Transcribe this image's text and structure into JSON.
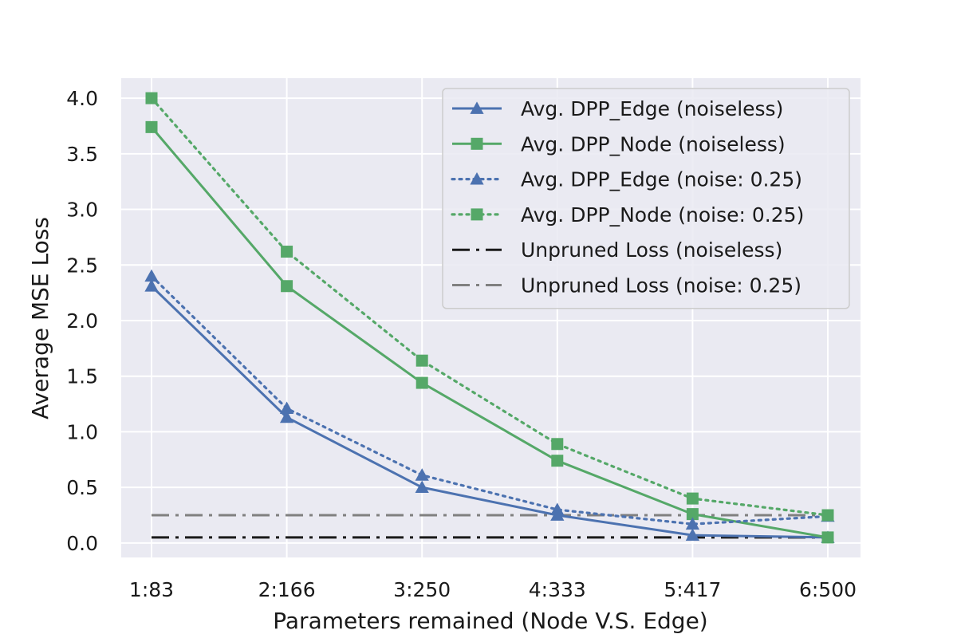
{
  "chart_data": {
    "type": "line",
    "title": "",
    "xlabel": "Parameters remained (Node V.S. Edge)",
    "ylabel": "Average MSE Loss",
    "categories": [
      "1:83",
      "2:166",
      "3:250",
      "4:333",
      "5:417",
      "6:500"
    ],
    "ylim": [
      -0.13,
      4.18
    ],
    "yticks": [
      0.0,
      0.5,
      1.0,
      1.5,
      2.0,
      2.5,
      3.0,
      3.5,
      4.0
    ],
    "ytick_labels": [
      "0.0",
      "0.5",
      "1.0",
      "1.5",
      "2.0",
      "2.5",
      "3.0",
      "3.5",
      "4.0"
    ],
    "grid": true,
    "legend_position": "top-right",
    "series": [
      {
        "name": "Avg. DPP_Edge (noiseless)",
        "values": [
          2.31,
          1.13,
          0.5,
          0.25,
          0.07,
          0.05
        ],
        "color": "#4c72b0",
        "linestyle": "solid",
        "marker": "triangle"
      },
      {
        "name": "Avg. DPP_Node (noiseless)",
        "values": [
          3.74,
          2.31,
          1.44,
          0.74,
          0.26,
          0.05
        ],
        "color": "#55a868",
        "linestyle": "solid",
        "marker": "square"
      },
      {
        "name": "Avg. DPP_Edge (noise: 0.25)",
        "values": [
          2.4,
          1.21,
          0.61,
          0.3,
          0.17,
          0.24
        ],
        "color": "#4c72b0",
        "linestyle": "dotted",
        "marker": "triangle"
      },
      {
        "name": "Avg. DPP_Node (noise: 0.25)",
        "values": [
          4.0,
          2.62,
          1.64,
          0.89,
          0.4,
          0.25
        ],
        "color": "#55a868",
        "linestyle": "dotted",
        "marker": "square"
      },
      {
        "name": "Unpruned Loss (noiseless)",
        "values": [
          0.05,
          0.05,
          0.05,
          0.05,
          0.05,
          0.05
        ],
        "color": "#1a1a1a",
        "linestyle": "dashdot",
        "marker": "none"
      },
      {
        "name": "Unpruned Loss (noise: 0.25)",
        "values": [
          0.25,
          0.25,
          0.25,
          0.25,
          0.25,
          0.25
        ],
        "color": "#808080",
        "linestyle": "dashdot",
        "marker": "none"
      }
    ]
  }
}
